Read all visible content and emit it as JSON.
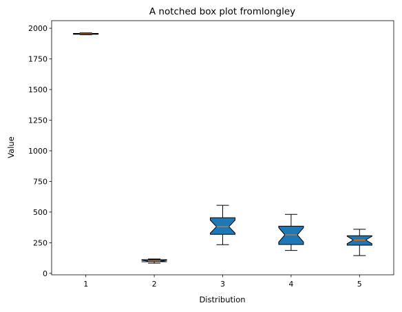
{
  "chart_data": {
    "type": "box",
    "notched": true,
    "title": "A notched box plot fromlongley",
    "xlabel": "Distribution",
    "ylabel": "Value",
    "ylim": [
      -12,
      2062
    ],
    "yticks": [
      0,
      250,
      500,
      750,
      1000,
      1250,
      1500,
      1750,
      2000
    ],
    "categories": [
      "1",
      "2",
      "3",
      "4",
      "5"
    ],
    "boxes": [
      {
        "category": "1",
        "whislo": 1947,
        "q1": 1950.75,
        "med": 1954.5,
        "q3": 1958.25,
        "whishi": 1962,
        "notch_lo": 1951.6,
        "notch_hi": 1957.4
      },
      {
        "category": "2",
        "whislo": 83,
        "q1": 94.5,
        "med": 100.6,
        "q3": 111.6,
        "whishi": 117,
        "notch_lo": 94.6,
        "notch_hi": 106.6
      },
      {
        "category": "3",
        "whislo": 234,
        "q1": 318,
        "med": 381,
        "q3": 454,
        "whishi": 555,
        "notch_lo": 328,
        "notch_hi": 434
      },
      {
        "category": "4",
        "whislo": 187,
        "q1": 235,
        "med": 314,
        "q3": 385,
        "whishi": 481,
        "notch_lo": 256,
        "notch_hi": 372
      },
      {
        "category": "5",
        "whislo": 145,
        "q1": 230,
        "med": 272,
        "q3": 307,
        "whishi": 360,
        "notch_lo": 242,
        "notch_hi": 302
      }
    ],
    "colors": {
      "box_fill": "#1f77b4",
      "box_edge": "#000000",
      "median": "#ff7f0e",
      "whisker": "#000000"
    },
    "grid": false
  }
}
